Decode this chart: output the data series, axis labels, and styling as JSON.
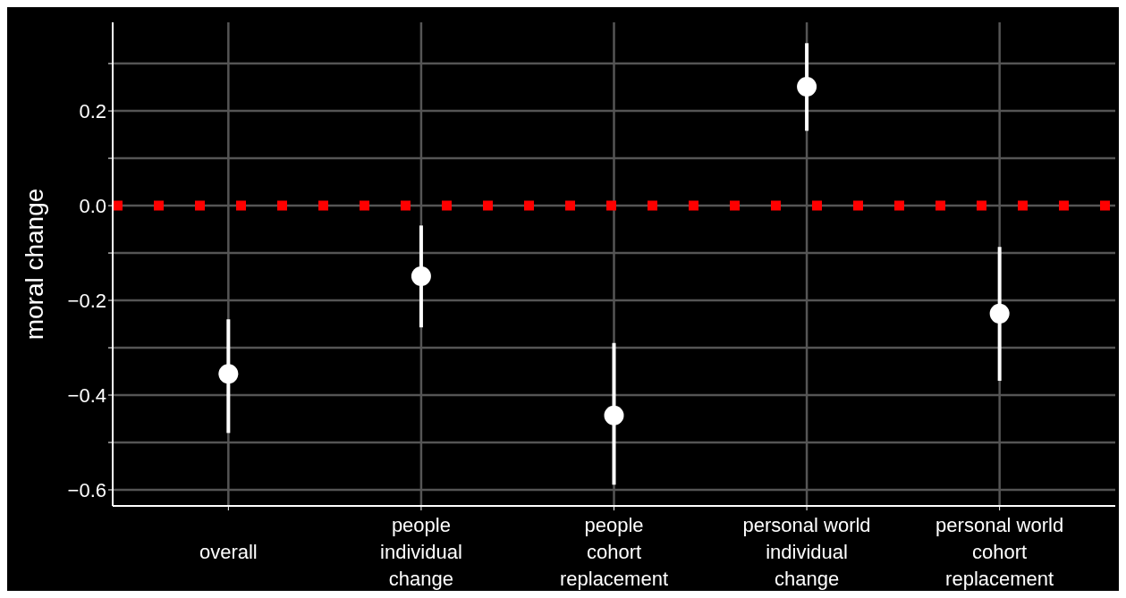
{
  "chart_data": {
    "type": "scatter",
    "ylabel": "moral change",
    "categories": [
      "overall",
      "people\nindividual\nchange",
      "people\ncohort\nreplacement",
      "personal world\nindividual\nchange",
      "personal world\ncohort\nreplacement"
    ],
    "values": [
      -0.355,
      -0.149,
      -0.443,
      0.251,
      -0.228
    ],
    "errors": [
      [
        -0.48,
        -0.24
      ],
      [
        -0.257,
        -0.042
      ],
      [
        -0.589,
        -0.29
      ],
      [
        0.158,
        0.343
      ],
      [
        -0.37,
        -0.087
      ]
    ],
    "color": "#ffffff",
    "marker": "circle",
    "ylim": [
      -0.634,
      0.387
    ],
    "yticks": [
      {
        "value": -0.6,
        "label": "−0.6"
      },
      {
        "value": -0.5,
        "label": null
      },
      {
        "value": -0.4,
        "label": "−0.4"
      },
      {
        "value": -0.3,
        "label": null
      },
      {
        "value": -0.2,
        "label": "−0.2"
      },
      {
        "value": -0.1,
        "label": null
      },
      {
        "value": 0,
        "label": "0.0"
      },
      {
        "value": 0.1,
        "label": null
      },
      {
        "value": 0.2,
        "label": "0.2"
      },
      {
        "value": 0.3,
        "label": null
      }
    ],
    "grid": true,
    "ref_lines": [
      {
        "axis": "y",
        "value": 0,
        "color": "#ff0000",
        "line_style": "dotted"
      }
    ]
  }
}
